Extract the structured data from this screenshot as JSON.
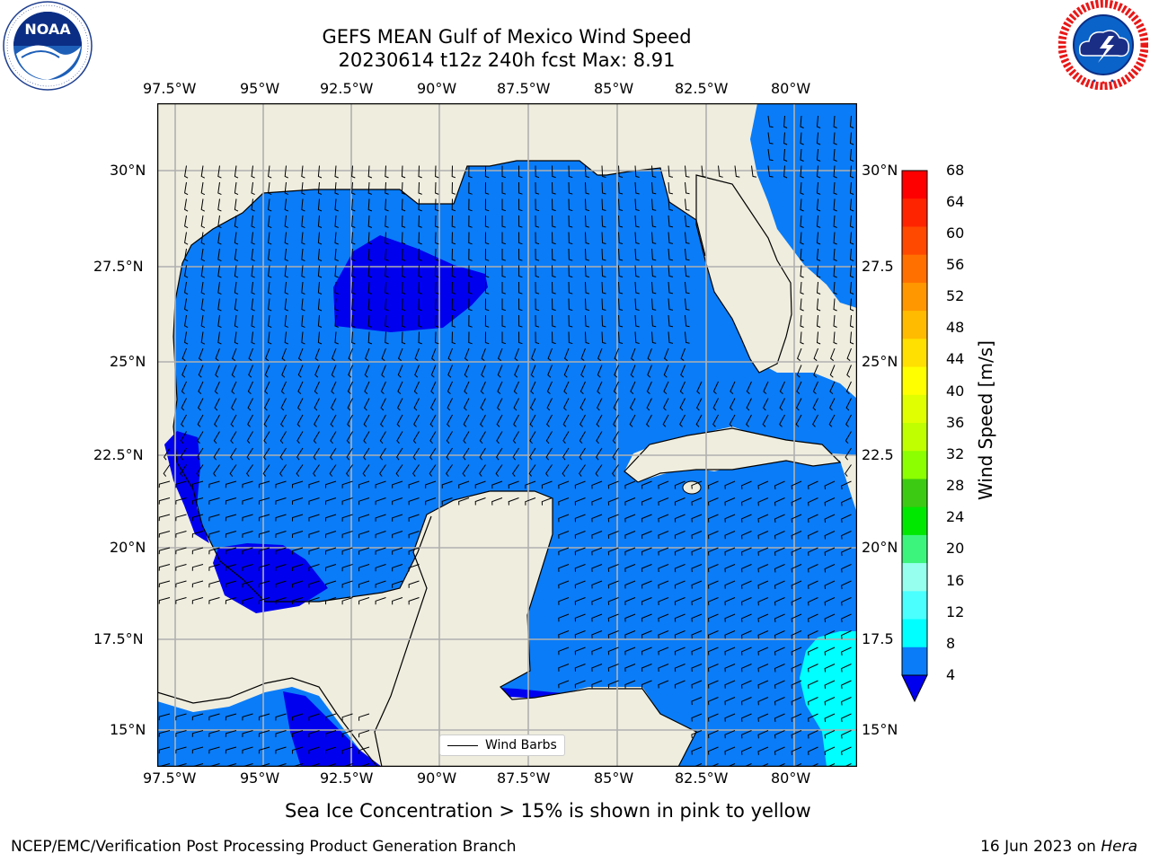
{
  "title": {
    "line1": "GEFS MEAN Gulf of Mexico Wind Speed",
    "line2": "20230614 t12z 240h fcst   Max: 8.91"
  },
  "logos": {
    "left": {
      "icon": "noaa-logo",
      "text": "NOAA",
      "ring_text": "NATIONAL OCEANIC AND ATMOSPHERIC ADMINISTRATION · U.S. DEPARTMENT OF COMMERCE"
    },
    "right": {
      "icon": "nws-logo",
      "ring_text": "NATIONAL WEATHER SERVICE"
    }
  },
  "map": {
    "lon_labels": [
      "97.5°W",
      "95°W",
      "92.5°W",
      "90°W",
      "87.5°W",
      "85°W",
      "82.5°W",
      "80°W"
    ],
    "lat_labels_left": [
      "30°N",
      "27.5°N",
      "25°N",
      "22.5°N",
      "20°N",
      "17.5°N",
      "15°N"
    ],
    "lat_labels_right": [
      "30°N",
      "27.5",
      "25°N",
      "22.5",
      "20°N",
      "17.5",
      "15°N"
    ],
    "colors": {
      "land": "#efedde",
      "speed_4_8": "#0a7cf7",
      "speed_under_4": "#0000ef",
      "speed_8_12": "#00ffff",
      "grid": "#b0b0b0"
    },
    "legend": "Wind Barbs"
  },
  "colorbar": {
    "label": "Wind Speed [m/s]",
    "ticks": [
      "68",
      "64",
      "60",
      "56",
      "52",
      "48",
      "44",
      "40",
      "36",
      "32",
      "28",
      "24",
      "20",
      "16",
      "12",
      "8",
      "4"
    ],
    "colors": [
      "#ff0000",
      "#ff2400",
      "#ff4900",
      "#ff7000",
      "#ff9700",
      "#ffbb00",
      "#ffe000",
      "#ffff00",
      "#e0ff00",
      "#c0ff00",
      "#8cff00",
      "#3ccb12",
      "#00e800",
      "#3cf47c",
      "#96ffee",
      "#4bffff",
      "#00ffff",
      "#0a7cf7"
    ],
    "under_color": "#0000ef"
  },
  "note": "Sea Ice Concentration > 15% is shown in pink to yellow",
  "footer": {
    "left": "NCEP/EMC/Verification Post Processing Product Generation Branch",
    "date": "16 Jun 2023 on ",
    "machine": "Hera"
  }
}
